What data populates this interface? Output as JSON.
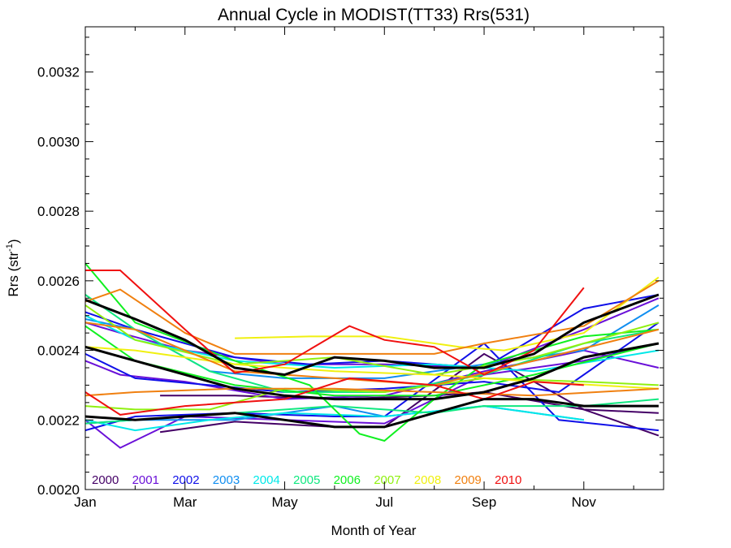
{
  "chart_data": {
    "type": "line",
    "title": "Annual Cycle in MODIST(TT33) Rrs(531)",
    "xlabel": "Month of Year",
    "ylabel": {
      "text": "Rrs (str",
      "sup": "-1",
      "suffix": ")"
    },
    "xlim": [
      1,
      12.6
    ],
    "ylim": [
      0.002,
      0.00333
    ],
    "xticks": [
      {
        "v": 1,
        "label": "Jan"
      },
      {
        "v": 3,
        "label": "Mar"
      },
      {
        "v": 5,
        "label": "May"
      },
      {
        "v": 7,
        "label": "Jul"
      },
      {
        "v": 9,
        "label": "Sep"
      },
      {
        "v": 11,
        "label": "Nov"
      }
    ],
    "yticks": [
      {
        "v": 0.002,
        "label": "0.0020"
      },
      {
        "v": 0.0022,
        "label": "0.0022"
      },
      {
        "v": 0.0024,
        "label": "0.0024"
      },
      {
        "v": 0.0026,
        "label": "0.0026"
      },
      {
        "v": 0.0028,
        "label": "0.0028"
      },
      {
        "v": 0.003,
        "label": "0.0030"
      },
      {
        "v": 0.0032,
        "label": "0.0032"
      }
    ],
    "legend_position": "bottom-left",
    "series": [
      {
        "name": "2000",
        "color": "#440066",
        "lines": [
          [
            [
              2.5,
              0.002165
            ],
            [
              4,
              0.002195
            ],
            [
              6,
              0.00218
            ],
            [
              7,
              0.00218
            ],
            [
              9,
              0.00239
            ],
            [
              11,
              0.00223
            ],
            [
              12.5,
              0.002155
            ]
          ],
          [
            [
              2.5,
              0.00227
            ],
            [
              4,
              0.00227
            ],
            [
              6,
              0.00226
            ],
            [
              8,
              0.00227
            ],
            [
              9,
              0.00228
            ],
            [
              11,
              0.00223
            ],
            [
              12.5,
              0.00222
            ]
          ]
        ]
      },
      {
        "name": "2001",
        "color": "#6a10d8",
        "lines": [
          [
            [
              1,
              0.0022
            ],
            [
              1.7,
              0.00212
            ],
            [
              3,
              0.00221
            ],
            [
              5,
              0.0022
            ],
            [
              7,
              0.00219
            ],
            [
              9,
              0.00233
            ],
            [
              11,
              0.00237
            ],
            [
              12.5,
              0.00242
            ]
          ],
          [
            [
              1,
              0.00237
            ],
            [
              1.7,
              0.00233
            ],
            [
              3,
              0.00231
            ],
            [
              5,
              0.00226
            ],
            [
              7,
              0.00227
            ],
            [
              9,
              0.00234
            ],
            [
              11,
              0.0024
            ],
            [
              12.5,
              0.00235
            ]
          ],
          [
            [
              1,
              0.00248
            ],
            [
              1.7,
              0.00245
            ],
            [
              3,
              0.0024
            ],
            [
              5,
              0.00236
            ],
            [
              7,
              0.00236
            ],
            [
              9,
              0.00235
            ],
            [
              11,
              0.00246
            ],
            [
              12.5,
              0.00255
            ]
          ]
        ]
      },
      {
        "name": "2002",
        "color": "#1010e8",
        "lines": [
          [
            [
              1,
              0.00217
            ],
            [
              2,
              0.00221
            ],
            [
              4,
              0.00222
            ],
            [
              6,
              0.00221
            ],
            [
              7,
              0.00221
            ],
            [
              9,
              0.00242
            ],
            [
              10.5,
              0.0022
            ],
            [
              12.5,
              0.00217
            ]
          ],
          [
            [
              1,
              0.00239
            ],
            [
              2,
              0.00232
            ],
            [
              3.5,
              0.0023
            ],
            [
              5,
              0.00228
            ],
            [
              7,
              0.00229
            ],
            [
              9,
              0.00231
            ],
            [
              10.5,
              0.00228
            ],
            [
              12.5,
              0.00248
            ]
          ],
          [
            [
              1,
              0.00251
            ],
            [
              2,
              0.00246
            ],
            [
              4,
              0.00238
            ],
            [
              5.5,
              0.00236
            ],
            [
              7,
              0.00237
            ],
            [
              9,
              0.00235
            ],
            [
              11,
              0.00252
            ],
            [
              12.5,
              0.00256
            ]
          ]
        ]
      },
      {
        "name": "2003",
        "color": "#108ef0",
        "lines": [
          [
            [
              1,
              0.00219
            ],
            [
              2,
              0.0022
            ],
            [
              4,
              0.0022
            ],
            [
              6,
              0.00224
            ],
            [
              7,
              0.00221
            ],
            [
              9,
              0.00224
            ],
            [
              11,
              0.0022
            ]
          ],
          [
            [
              1,
              0.00249
            ],
            [
              2,
              0.00246
            ],
            [
              3.5,
              0.00234
            ],
            [
              5,
              0.00232
            ],
            [
              7,
              0.00232
            ],
            [
              9,
              0.00236
            ],
            [
              11,
              0.0024
            ],
            [
              12.5,
              0.00253
            ]
          ]
        ]
      },
      {
        "name": "2004",
        "color": "#00e8e8",
        "lines": [
          [
            [
              1,
              0.0022
            ],
            [
              2,
              0.00217
            ],
            [
              3.5,
              0.0022
            ],
            [
              5,
              0.00222
            ],
            [
              7,
              0.00221
            ],
            [
              9,
              0.00224
            ],
            [
              11,
              0.0022
            ]
          ],
          [
            [
              1,
              0.0025
            ],
            [
              2,
              0.00243
            ],
            [
              4,
              0.00237
            ],
            [
              6,
              0.00235
            ],
            [
              8,
              0.00236
            ],
            [
              10,
              0.00234
            ],
            [
              12.5,
              0.0024
            ]
          ]
        ]
      },
      {
        "name": "2005",
        "color": "#10e880",
        "lines": [
          [
            [
              1,
              0.00219
            ],
            [
              2,
              0.0022
            ],
            [
              4,
              0.00222
            ],
            [
              6,
              0.00224
            ],
            [
              8,
              0.00222
            ],
            [
              9,
              0.00224
            ],
            [
              11,
              0.00224
            ],
            [
              12.5,
              0.00226
            ]
          ],
          [
            [
              1,
              0.00256
            ],
            [
              2,
              0.00246
            ],
            [
              3.5,
              0.00234
            ],
            [
              5,
              0.00228
            ],
            [
              7,
              0.00228
            ],
            [
              9,
              0.00233
            ],
            [
              11,
              0.00242
            ],
            [
              12.5,
              0.00246
            ]
          ]
        ]
      },
      {
        "name": "2006",
        "color": "#10f020",
        "lines": [
          [
            [
              1,
              0.00265
            ],
            [
              2,
              0.00248
            ],
            [
              4,
              0.00237
            ],
            [
              5.5,
              0.0023
            ],
            [
              6.5,
              0.00216
            ],
            [
              7,
              0.00214
            ],
            [
              8,
              0.00226
            ],
            [
              9,
              0.00236
            ],
            [
              11,
              0.00244
            ],
            [
              12.5,
              0.00246
            ]
          ],
          [
            [
              1,
              0.00247
            ],
            [
              2,
              0.00237
            ],
            [
              4,
              0.0023
            ],
            [
              6,
              0.00227
            ],
            [
              8,
              0.00227
            ],
            [
              10,
              0.00233
            ],
            [
              12.5,
              0.00242
            ]
          ]
        ]
      },
      {
        "name": "2007",
        "color": "#90f010",
        "lines": [
          [
            [
              1,
              0.00224
            ],
            [
              2,
              0.00223
            ],
            [
              3.5,
              0.00223
            ],
            [
              5,
              0.00229
            ],
            [
              7,
              0.00228
            ],
            [
              9,
              0.00232
            ],
            [
              11,
              0.00231
            ],
            [
              12.5,
              0.0023
            ]
          ],
          [
            [
              1,
              0.00253
            ],
            [
              2,
              0.00243
            ],
            [
              4,
              0.00236
            ],
            [
              6,
              0.00238
            ],
            [
              8,
              0.00233
            ],
            [
              10,
              0.00238
            ],
            [
              12.5,
              0.00248
            ]
          ]
        ]
      },
      {
        "name": "2008",
        "color": "#f0f010",
        "lines": [
          [
            [
              4,
              0.002435
            ],
            [
              5.5,
              0.00244
            ],
            [
              7,
              0.00244
            ],
            [
              8.5,
              0.00241
            ],
            [
              9.4,
              0.0024
            ],
            [
              11,
              0.00245
            ],
            [
              12.5,
              0.00261
            ]
          ],
          [
            [
              1,
              0.00241
            ],
            [
              2,
              0.0024
            ],
            [
              4,
              0.00236
            ],
            [
              6,
              0.00234
            ],
            [
              8,
              0.00233
            ],
            [
              10,
              0.00231
            ],
            [
              12.5,
              0.00229
            ]
          ]
        ]
      },
      {
        "name": "2009",
        "color": "#f08010",
        "lines": [
          [
            [
              1,
              0.00227
            ],
            [
              2,
              0.00228
            ],
            [
              4,
              0.00229
            ],
            [
              6,
              0.00229
            ],
            [
              8,
              0.00228
            ],
            [
              10,
              0.00227
            ],
            [
              12.5,
              0.00229
            ]
          ],
          [
            [
              1,
              0.00254
            ],
            [
              1.7,
              0.002575
            ],
            [
              3,
              0.00245
            ],
            [
              4,
              0.00239
            ],
            [
              6,
              0.00239
            ],
            [
              8,
              0.00239
            ],
            [
              9,
              0.00242
            ],
            [
              11,
              0.00247
            ],
            [
              12.5,
              0.0026
            ]
          ],
          [
            [
              1,
              0.00248
            ],
            [
              2,
              0.00246
            ],
            [
              4,
              0.00234
            ],
            [
              6,
              0.00232
            ],
            [
              8,
              0.0023
            ],
            [
              10,
              0.00237
            ],
            [
              12.5,
              0.00246
            ]
          ]
        ]
      },
      {
        "name": "2010",
        "color": "#f01010",
        "lines": [
          [
            [
              1,
              0.00263
            ],
            [
              1.7,
              0.00263
            ],
            [
              3,
              0.00246
            ],
            [
              4,
              0.002335
            ],
            [
              5,
              0.00236
            ],
            [
              6.3,
              0.00247
            ],
            [
              7,
              0.00243
            ],
            [
              8,
              0.00241
            ],
            [
              8.5,
              0.00237
            ],
            [
              9,
              0.00233
            ],
            [
              10,
              0.0024
            ],
            [
              11,
              0.00258
            ]
          ],
          [
            [
              1,
              0.00228
            ],
            [
              1.7,
              0.002215
            ],
            [
              3,
              0.00224
            ],
            [
              5,
              0.00226
            ],
            [
              6.3,
              0.00232
            ],
            [
              8,
              0.0023
            ],
            [
              9,
              0.00226
            ],
            [
              10,
              0.00231
            ],
            [
              11,
              0.0023
            ]
          ]
        ]
      }
    ],
    "black_lines": [
      [
        [
          1,
          0.002545
        ],
        [
          2,
          0.00249
        ],
        [
          3,
          0.00243
        ],
        [
          4,
          0.00235
        ],
        [
          5,
          0.00233
        ],
        [
          6,
          0.00238
        ],
        [
          7,
          0.00237
        ],
        [
          8,
          0.00235
        ],
        [
          9,
          0.00235
        ],
        [
          10,
          0.00239
        ],
        [
          11,
          0.00248
        ],
        [
          12.5,
          0.00256
        ]
      ],
      [
        [
          1,
          0.00241
        ],
        [
          2,
          0.00237
        ],
        [
          3,
          0.00233
        ],
        [
          4,
          0.00229
        ],
        [
          5,
          0.00227
        ],
        [
          6,
          0.00226
        ],
        [
          7,
          0.00226
        ],
        [
          8,
          0.00226
        ],
        [
          9,
          0.00228
        ],
        [
          10,
          0.00232
        ],
        [
          11,
          0.00238
        ],
        [
          12.5,
          0.00242
        ]
      ],
      [
        [
          1,
          0.00221
        ],
        [
          2,
          0.0022
        ],
        [
          3,
          0.00221
        ],
        [
          4,
          0.00222
        ],
        [
          5,
          0.0022
        ],
        [
          6,
          0.00218
        ],
        [
          7,
          0.00218
        ],
        [
          8,
          0.00222
        ],
        [
          9,
          0.00226
        ],
        [
          10,
          0.00226
        ],
        [
          11,
          0.00224
        ],
        [
          12.5,
          0.00224
        ]
      ]
    ]
  }
}
